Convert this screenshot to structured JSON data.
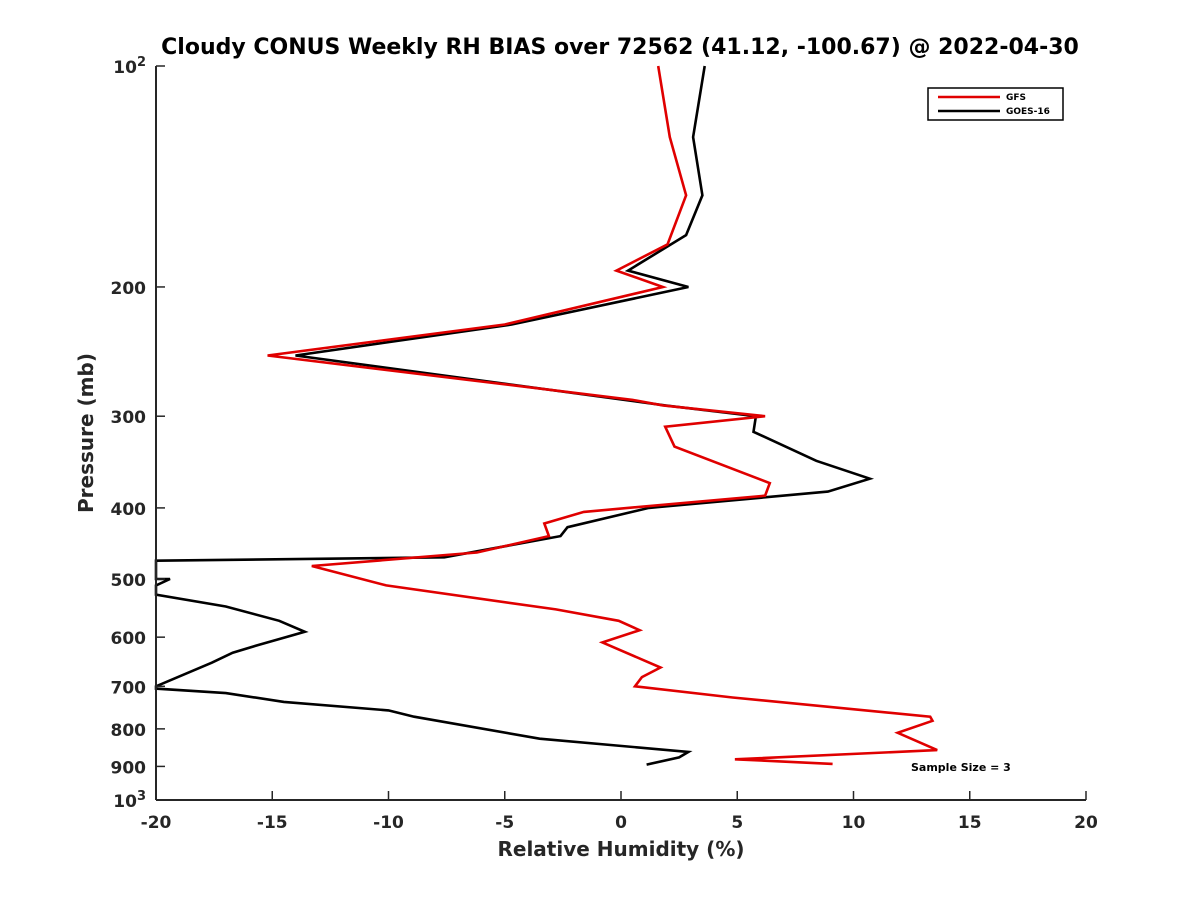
{
  "chart_data": {
    "type": "line",
    "title": "Cloudy CONUS Weekly RH BIAS over 72562 (41.12, -100.67) @ 2022-04-30",
    "xlabel": "Relative Humidity (%)",
    "ylabel": "Pressure (mb)",
    "xlim": [
      -20,
      20
    ],
    "ylim": [
      1000,
      100
    ],
    "y_scale": "log",
    "y_reversed": true,
    "x_ticks": [
      "-20",
      "-15",
      "-10",
      "-5",
      "0",
      "5",
      "10",
      "15",
      "20"
    ],
    "y_ticks": [
      {
        "value": 100,
        "base": "10",
        "exp": "2"
      },
      {
        "value": 200,
        "label": "200"
      },
      {
        "value": 300,
        "label": "300"
      },
      {
        "value": 400,
        "label": "400"
      },
      {
        "value": 500,
        "label": "500"
      },
      {
        "value": 600,
        "label": "600"
      },
      {
        "value": 700,
        "label": "700"
      },
      {
        "value": 800,
        "label": "800"
      },
      {
        "value": 900,
        "label": "900"
      },
      {
        "value": 1000,
        "base": "10",
        "exp": "3"
      }
    ],
    "grid": false,
    "legend_position": "top-right",
    "series": [
      {
        "name": "GFS",
        "color": "#e00000",
        "points": [
          [
            1.6,
            100
          ],
          [
            2.1,
            125
          ],
          [
            2.8,
            150
          ],
          [
            2.0,
            175
          ],
          [
            -0.2,
            190
          ],
          [
            1.8,
            200
          ],
          [
            -5.0,
            225
          ],
          [
            -15.2,
            248
          ],
          [
            0.5,
            285
          ],
          [
            1.8,
            290
          ],
          [
            6.2,
            300
          ],
          [
            1.9,
            310
          ],
          [
            2.3,
            330
          ],
          [
            6.4,
            370
          ],
          [
            6.2,
            385
          ],
          [
            -1.6,
            405
          ],
          [
            -3.3,
            420
          ],
          [
            -3.1,
            437
          ],
          [
            -6.2,
            460
          ],
          [
            -13.3,
            480
          ],
          [
            -10.1,
            510
          ],
          [
            -2.8,
            550
          ],
          [
            -0.1,
            570
          ],
          [
            0.8,
            587
          ],
          [
            -0.8,
            610
          ],
          [
            1.7,
            660
          ],
          [
            0.9,
            680
          ],
          [
            0.6,
            700
          ],
          [
            4.8,
            725
          ],
          [
            13.3,
            770
          ],
          [
            13.4,
            780
          ],
          [
            11.9,
            810
          ],
          [
            13.6,
            855
          ],
          [
            4.9,
            880
          ],
          [
            9.1,
            893
          ]
        ]
      },
      {
        "name": "GOES-16",
        "color": "#000000",
        "points": [
          [
            3.6,
            100
          ],
          [
            3.1,
            125
          ],
          [
            3.5,
            150
          ],
          [
            2.8,
            170
          ],
          [
            0.3,
            190
          ],
          [
            2.9,
            200
          ],
          [
            -4.7,
            225
          ],
          [
            -14.0,
            248
          ],
          [
            1.9,
            290
          ],
          [
            5.8,
            300
          ],
          [
            5.7,
            315
          ],
          [
            8.4,
            345
          ],
          [
            10.7,
            365
          ],
          [
            8.9,
            380
          ],
          [
            1.2,
            400
          ],
          [
            -2.3,
            425
          ],
          [
            -2.6,
            437
          ],
          [
            -7.6,
            467
          ],
          [
            -20.0,
            472
          ],
          [
            -20.0,
            500
          ],
          [
            -19.4,
            500
          ],
          [
            -20.0,
            510
          ],
          [
            -20.0,
            525
          ],
          [
            -17.0,
            545
          ],
          [
            -14.7,
            570
          ],
          [
            -13.6,
            590
          ],
          [
            -15.6,
            615
          ],
          [
            -16.7,
            630
          ],
          [
            -17.6,
            650
          ],
          [
            -20.0,
            700
          ],
          [
            -20.0,
            705
          ],
          [
            -17.0,
            715
          ],
          [
            -14.5,
            735
          ],
          [
            -10.0,
            755
          ],
          [
            -8.9,
            770
          ],
          [
            -3.5,
            825
          ],
          [
            2.9,
            860
          ],
          [
            2.5,
            875
          ],
          [
            1.1,
            895
          ]
        ]
      }
    ],
    "annotation": "Sample Size = 3"
  }
}
